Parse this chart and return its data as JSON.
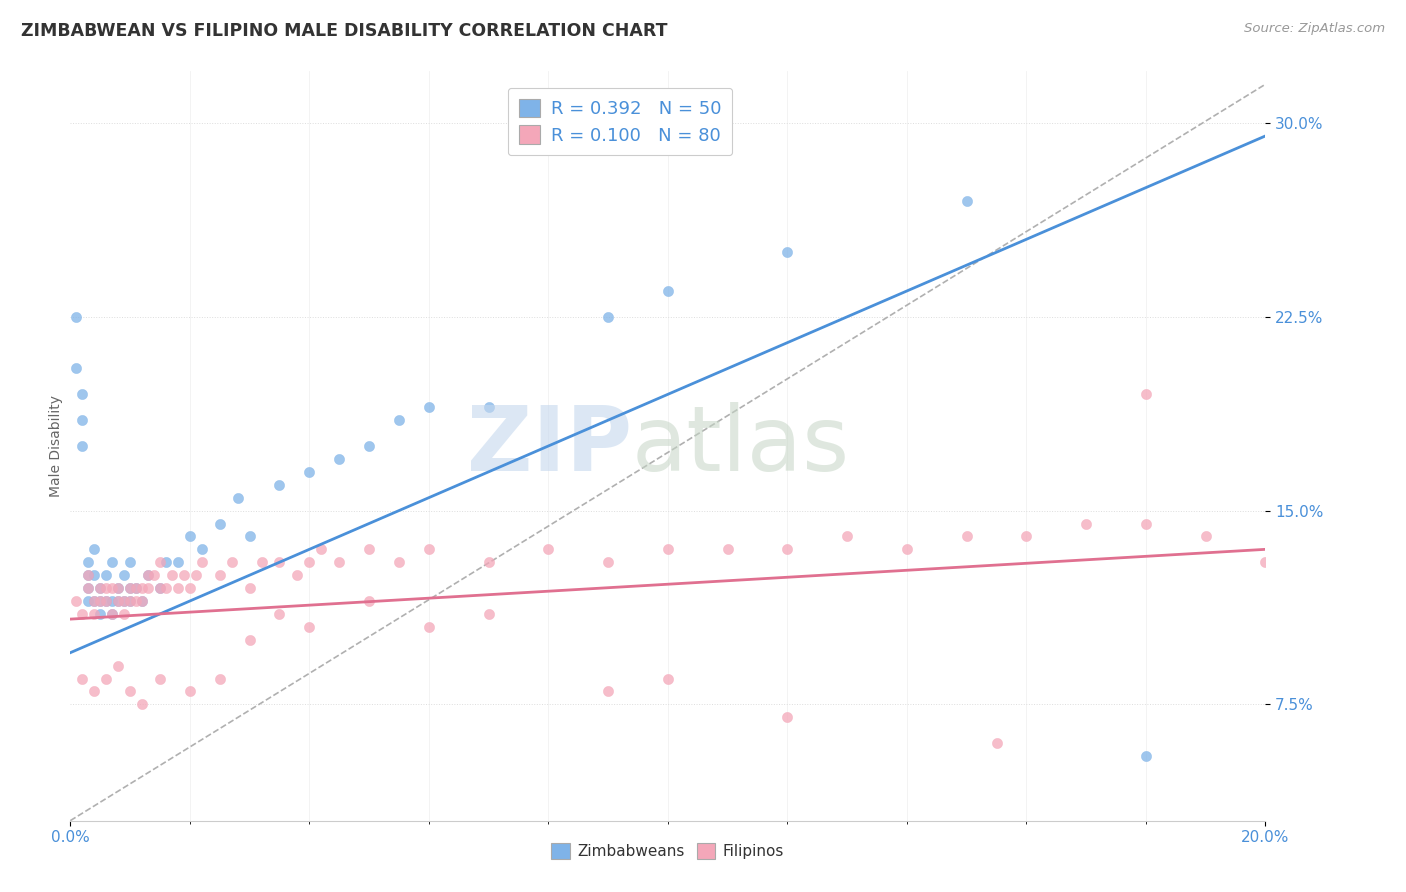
{
  "title": "ZIMBABWEAN VS FILIPINO MALE DISABILITY CORRELATION CHART",
  "source": "Source: ZipAtlas.com",
  "ylabel": "Male Disability",
  "yaxis_labels": [
    "7.5%",
    "15.0%",
    "22.5%",
    "30.0%"
  ],
  "yaxis_values": [
    0.075,
    0.15,
    0.225,
    0.3
  ],
  "xmin": 0.0,
  "xmax": 0.2,
  "ymin": 0.03,
  "ymax": 0.32,
  "zimbabwe_color": "#7fb3e8",
  "filipino_color": "#f4a7b9",
  "trend_blue": "#4a90d9",
  "trend_pink": "#e07090",
  "trend_gray": "#b0b0b0",
  "zim_trend_y0": 0.095,
  "zim_trend_y1": 0.295,
  "fil_trend_y0": 0.108,
  "fil_trend_y1": 0.135,
  "gray_line_y0": 0.03,
  "gray_line_y1": 0.315,
  "legend_R_zim": "R = 0.392",
  "legend_N_zim": "N = 50",
  "legend_R_fil": "R = 0.100",
  "legend_N_fil": "N = 80",
  "zimbabwe_x": [
    0.001,
    0.001,
    0.002,
    0.002,
    0.002,
    0.003,
    0.003,
    0.003,
    0.003,
    0.004,
    0.004,
    0.004,
    0.005,
    0.005,
    0.005,
    0.006,
    0.006,
    0.007,
    0.007,
    0.007,
    0.008,
    0.008,
    0.009,
    0.009,
    0.01,
    0.01,
    0.01,
    0.011,
    0.012,
    0.013,
    0.015,
    0.016,
    0.018,
    0.02,
    0.022,
    0.025,
    0.028,
    0.03,
    0.035,
    0.04,
    0.045,
    0.05,
    0.055,
    0.06,
    0.07,
    0.09,
    0.1,
    0.12,
    0.15,
    0.18
  ],
  "zimbabwe_y": [
    0.225,
    0.205,
    0.195,
    0.185,
    0.175,
    0.13,
    0.12,
    0.115,
    0.125,
    0.115,
    0.125,
    0.135,
    0.11,
    0.115,
    0.12,
    0.115,
    0.125,
    0.11,
    0.115,
    0.13,
    0.115,
    0.12,
    0.115,
    0.125,
    0.115,
    0.12,
    0.13,
    0.12,
    0.115,
    0.125,
    0.12,
    0.13,
    0.13,
    0.14,
    0.135,
    0.145,
    0.155,
    0.14,
    0.16,
    0.165,
    0.17,
    0.175,
    0.185,
    0.19,
    0.19,
    0.225,
    0.235,
    0.25,
    0.27,
    0.055
  ],
  "filipino_x": [
    0.001,
    0.002,
    0.003,
    0.003,
    0.004,
    0.004,
    0.005,
    0.005,
    0.006,
    0.006,
    0.007,
    0.007,
    0.008,
    0.008,
    0.009,
    0.009,
    0.01,
    0.01,
    0.011,
    0.011,
    0.012,
    0.012,
    0.013,
    0.013,
    0.014,
    0.015,
    0.015,
    0.016,
    0.017,
    0.018,
    0.019,
    0.02,
    0.021,
    0.022,
    0.025,
    0.027,
    0.03,
    0.032,
    0.035,
    0.038,
    0.04,
    0.042,
    0.045,
    0.05,
    0.055,
    0.06,
    0.07,
    0.08,
    0.09,
    0.1,
    0.11,
    0.12,
    0.13,
    0.14,
    0.15,
    0.16,
    0.17,
    0.18,
    0.19,
    0.2,
    0.002,
    0.004,
    0.006,
    0.008,
    0.01,
    0.012,
    0.015,
    0.02,
    0.025,
    0.03,
    0.035,
    0.04,
    0.05,
    0.06,
    0.07,
    0.09,
    0.1,
    0.12,
    0.155,
    0.18
  ],
  "filipino_y": [
    0.115,
    0.11,
    0.12,
    0.125,
    0.11,
    0.115,
    0.12,
    0.115,
    0.115,
    0.12,
    0.11,
    0.12,
    0.115,
    0.12,
    0.115,
    0.11,
    0.115,
    0.12,
    0.115,
    0.12,
    0.115,
    0.12,
    0.12,
    0.125,
    0.125,
    0.12,
    0.13,
    0.12,
    0.125,
    0.12,
    0.125,
    0.12,
    0.125,
    0.13,
    0.125,
    0.13,
    0.12,
    0.13,
    0.13,
    0.125,
    0.13,
    0.135,
    0.13,
    0.135,
    0.13,
    0.135,
    0.13,
    0.135,
    0.13,
    0.135,
    0.135,
    0.135,
    0.14,
    0.135,
    0.14,
    0.14,
    0.145,
    0.145,
    0.14,
    0.13,
    0.085,
    0.08,
    0.085,
    0.09,
    0.08,
    0.075,
    0.085,
    0.08,
    0.085,
    0.1,
    0.11,
    0.105,
    0.115,
    0.105,
    0.11,
    0.08,
    0.085,
    0.07,
    0.06,
    0.195
  ]
}
